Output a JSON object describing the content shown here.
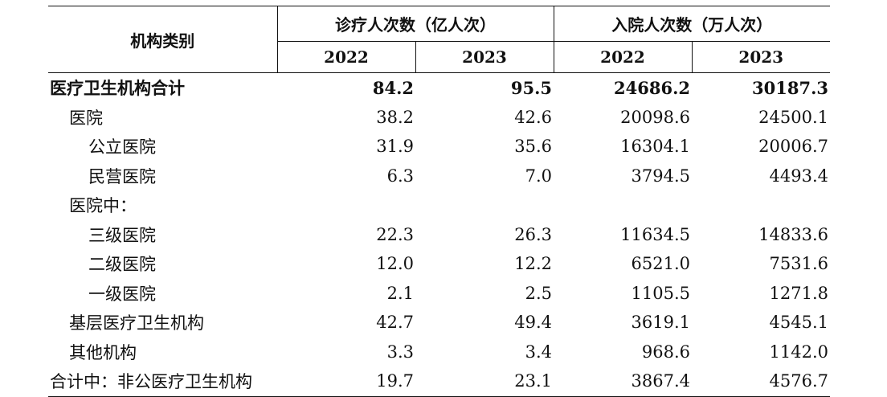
{
  "header": {
    "row_label": "机构类别",
    "visits_group": "诊疗人次数（亿人次）",
    "admissions_group": "入院人次数（万人次）",
    "years": [
      "2022",
      "2023",
      "2022",
      "2023"
    ]
  },
  "rows": [
    {
      "label": "医疗卫生机构合计",
      "indent": 0,
      "bold": true,
      "values": [
        "84.2",
        "95.5",
        "24686.2",
        "30187.3"
      ]
    },
    {
      "label": "医院",
      "indent": 1,
      "bold": false,
      "values": [
        "38.2",
        "42.6",
        "20098.6",
        "24500.1"
      ]
    },
    {
      "label": "公立医院",
      "indent": 2,
      "bold": false,
      "values": [
        "31.9",
        "35.6",
        "16304.1",
        "20006.7"
      ]
    },
    {
      "label": "民营医院",
      "indent": 2,
      "bold": false,
      "values": [
        "6.3",
        "7.0",
        "3794.5",
        "4493.4"
      ]
    },
    {
      "label": "医院中：",
      "indent": 1,
      "bold": false,
      "values": [
        "",
        "",
        "",
        ""
      ]
    },
    {
      "label": "三级医院",
      "indent": 2,
      "bold": false,
      "values": [
        "22.3",
        "26.3",
        "11634.5",
        "14833.6"
      ]
    },
    {
      "label": "二级医院",
      "indent": 2,
      "bold": false,
      "values": [
        "12.0",
        "12.2",
        "6521.0",
        "7531.6"
      ]
    },
    {
      "label": "一级医院",
      "indent": 2,
      "bold": false,
      "values": [
        "2.1",
        "2.5",
        "1105.5",
        "1271.8"
      ]
    },
    {
      "label": "基层医疗卫生机构",
      "indent": 1,
      "bold": false,
      "values": [
        "42.7",
        "49.4",
        "3619.1",
        "4545.1"
      ]
    },
    {
      "label": "其他机构",
      "indent": 1,
      "bold": false,
      "values": [
        "3.3",
        "3.4",
        "968.6",
        "1142.0"
      ]
    },
    {
      "label": "合计中：非公医疗卫生机构",
      "indent": 0,
      "bold": false,
      "values": [
        "19.7",
        "23.1",
        "3867.4",
        "4576.7"
      ]
    }
  ]
}
